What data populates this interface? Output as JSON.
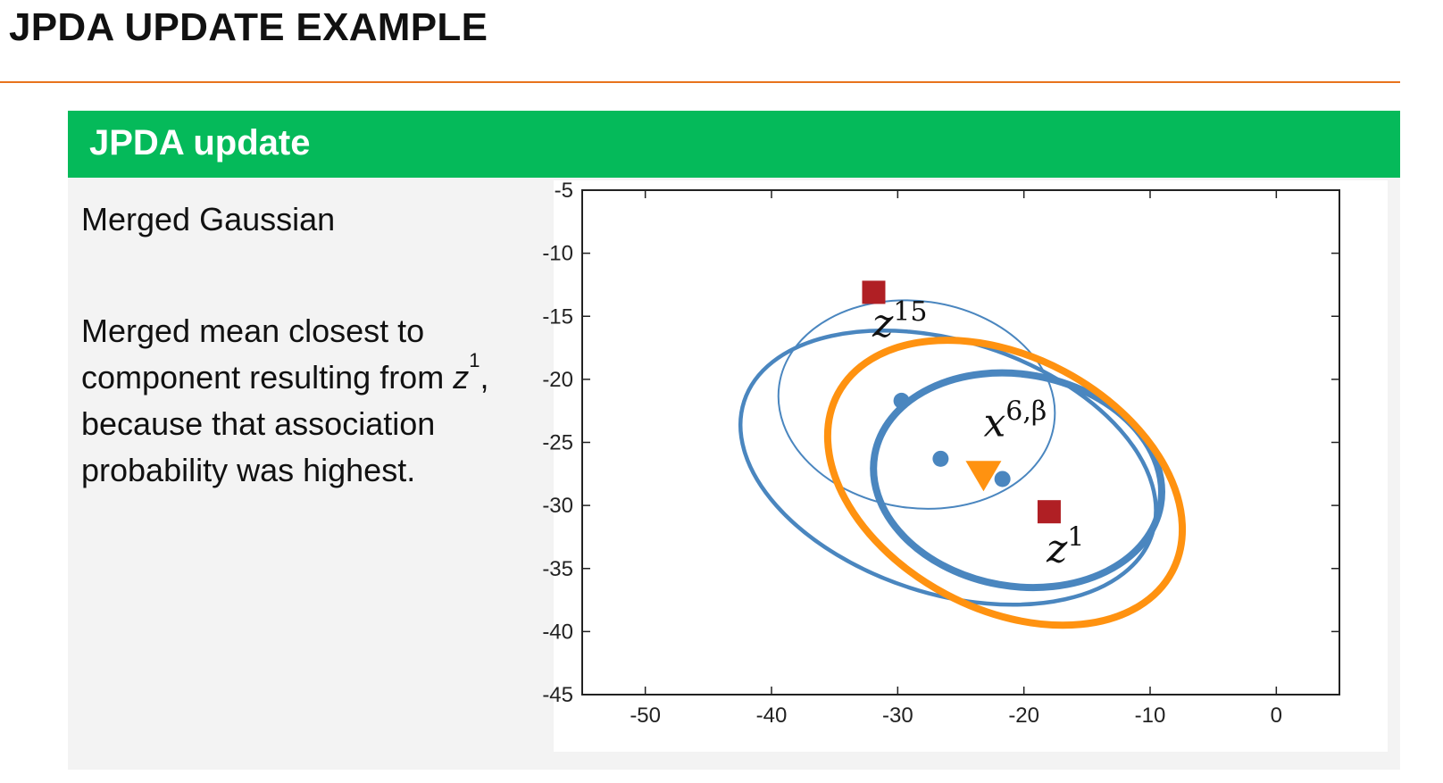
{
  "slide": {
    "title": "JPDA UPDATE EXAMPLE"
  },
  "block": {
    "title": "JPDA update",
    "heading": "Merged Gaussian",
    "paragraph": {
      "part1": "Merged mean closest to component resulting from ",
      "var": "z",
      "sup": "1",
      "part2": ", because that association probability was highest."
    }
  },
  "colors": {
    "accent_rule": "#e8731c",
    "block_header": "#05ba5a",
    "blue": "#4a86bf",
    "orange": "#ff9210",
    "measurement": "#b01f24"
  },
  "chart_data": {
    "type": "scatter",
    "title": "",
    "xlabel": "",
    "ylabel": "",
    "xlim": [
      -55,
      5
    ],
    "ylim": [
      -45,
      -5
    ],
    "xticks": [
      -50,
      -40,
      -30,
      -20,
      -10,
      0
    ],
    "yticks": [
      -5,
      -10,
      -15,
      -20,
      -25,
      -30,
      -35,
      -40,
      -45
    ],
    "grid": false,
    "ellipses": [
      {
        "name": "component-thin",
        "color": "#4a86bf",
        "center": [
          -28.5,
          -22
        ],
        "semi_axes": [
          11,
          8.2
        ],
        "rotation_deg": -8,
        "weight": "thin"
      },
      {
        "name": "component-medium",
        "color": "#4a86bf",
        "center": [
          -26,
          -27
        ],
        "semi_axes": [
          17,
          10
        ],
        "rotation_deg": -18,
        "weight": "medium"
      },
      {
        "name": "component-thick",
        "color": "#4a86bf",
        "center": [
          -20.5,
          -28
        ],
        "semi_axes": [
          11.5,
          8.4
        ],
        "rotation_deg": -10,
        "weight": "thick"
      },
      {
        "name": "merged",
        "color": "#ff9210",
        "center": [
          -21.5,
          -28.2
        ],
        "semi_axes": [
          15,
          10
        ],
        "rotation_deg": -28,
        "weight": "thick"
      }
    ],
    "points": [
      {
        "name": "component-mean",
        "x": -29.7,
        "y": -21.7,
        "marker": "circle",
        "color": "#4a86bf"
      },
      {
        "name": "component-mean",
        "x": -26.6,
        "y": -26.3,
        "marker": "circle",
        "color": "#4a86bf"
      },
      {
        "name": "component-mean",
        "x": -21.7,
        "y": -27.9,
        "marker": "circle",
        "color": "#4a86bf"
      },
      {
        "name": "merged-mean",
        "x": -23.2,
        "y": -27.6,
        "marker": "triangle-down",
        "color": "#ff9210"
      },
      {
        "name": "measurement-z15",
        "x": -31.9,
        "y": -13.1,
        "marker": "square",
        "color": "#b01f24"
      },
      {
        "name": "measurement-z1",
        "x": -18.0,
        "y": -30.5,
        "marker": "square",
        "color": "#b01f24"
      }
    ],
    "annotations": [
      {
        "name": "label-z15",
        "base": "z",
        "sup": "15",
        "x": -32,
        "y": -16.6
      },
      {
        "name": "label-x6b",
        "base": "x",
        "sup": "6,β",
        "x": -23.2,
        "y": -24.5
      },
      {
        "name": "label-z1",
        "base": "z",
        "sup": "1",
        "x": -18.2,
        "y": -34.5
      }
    ]
  }
}
